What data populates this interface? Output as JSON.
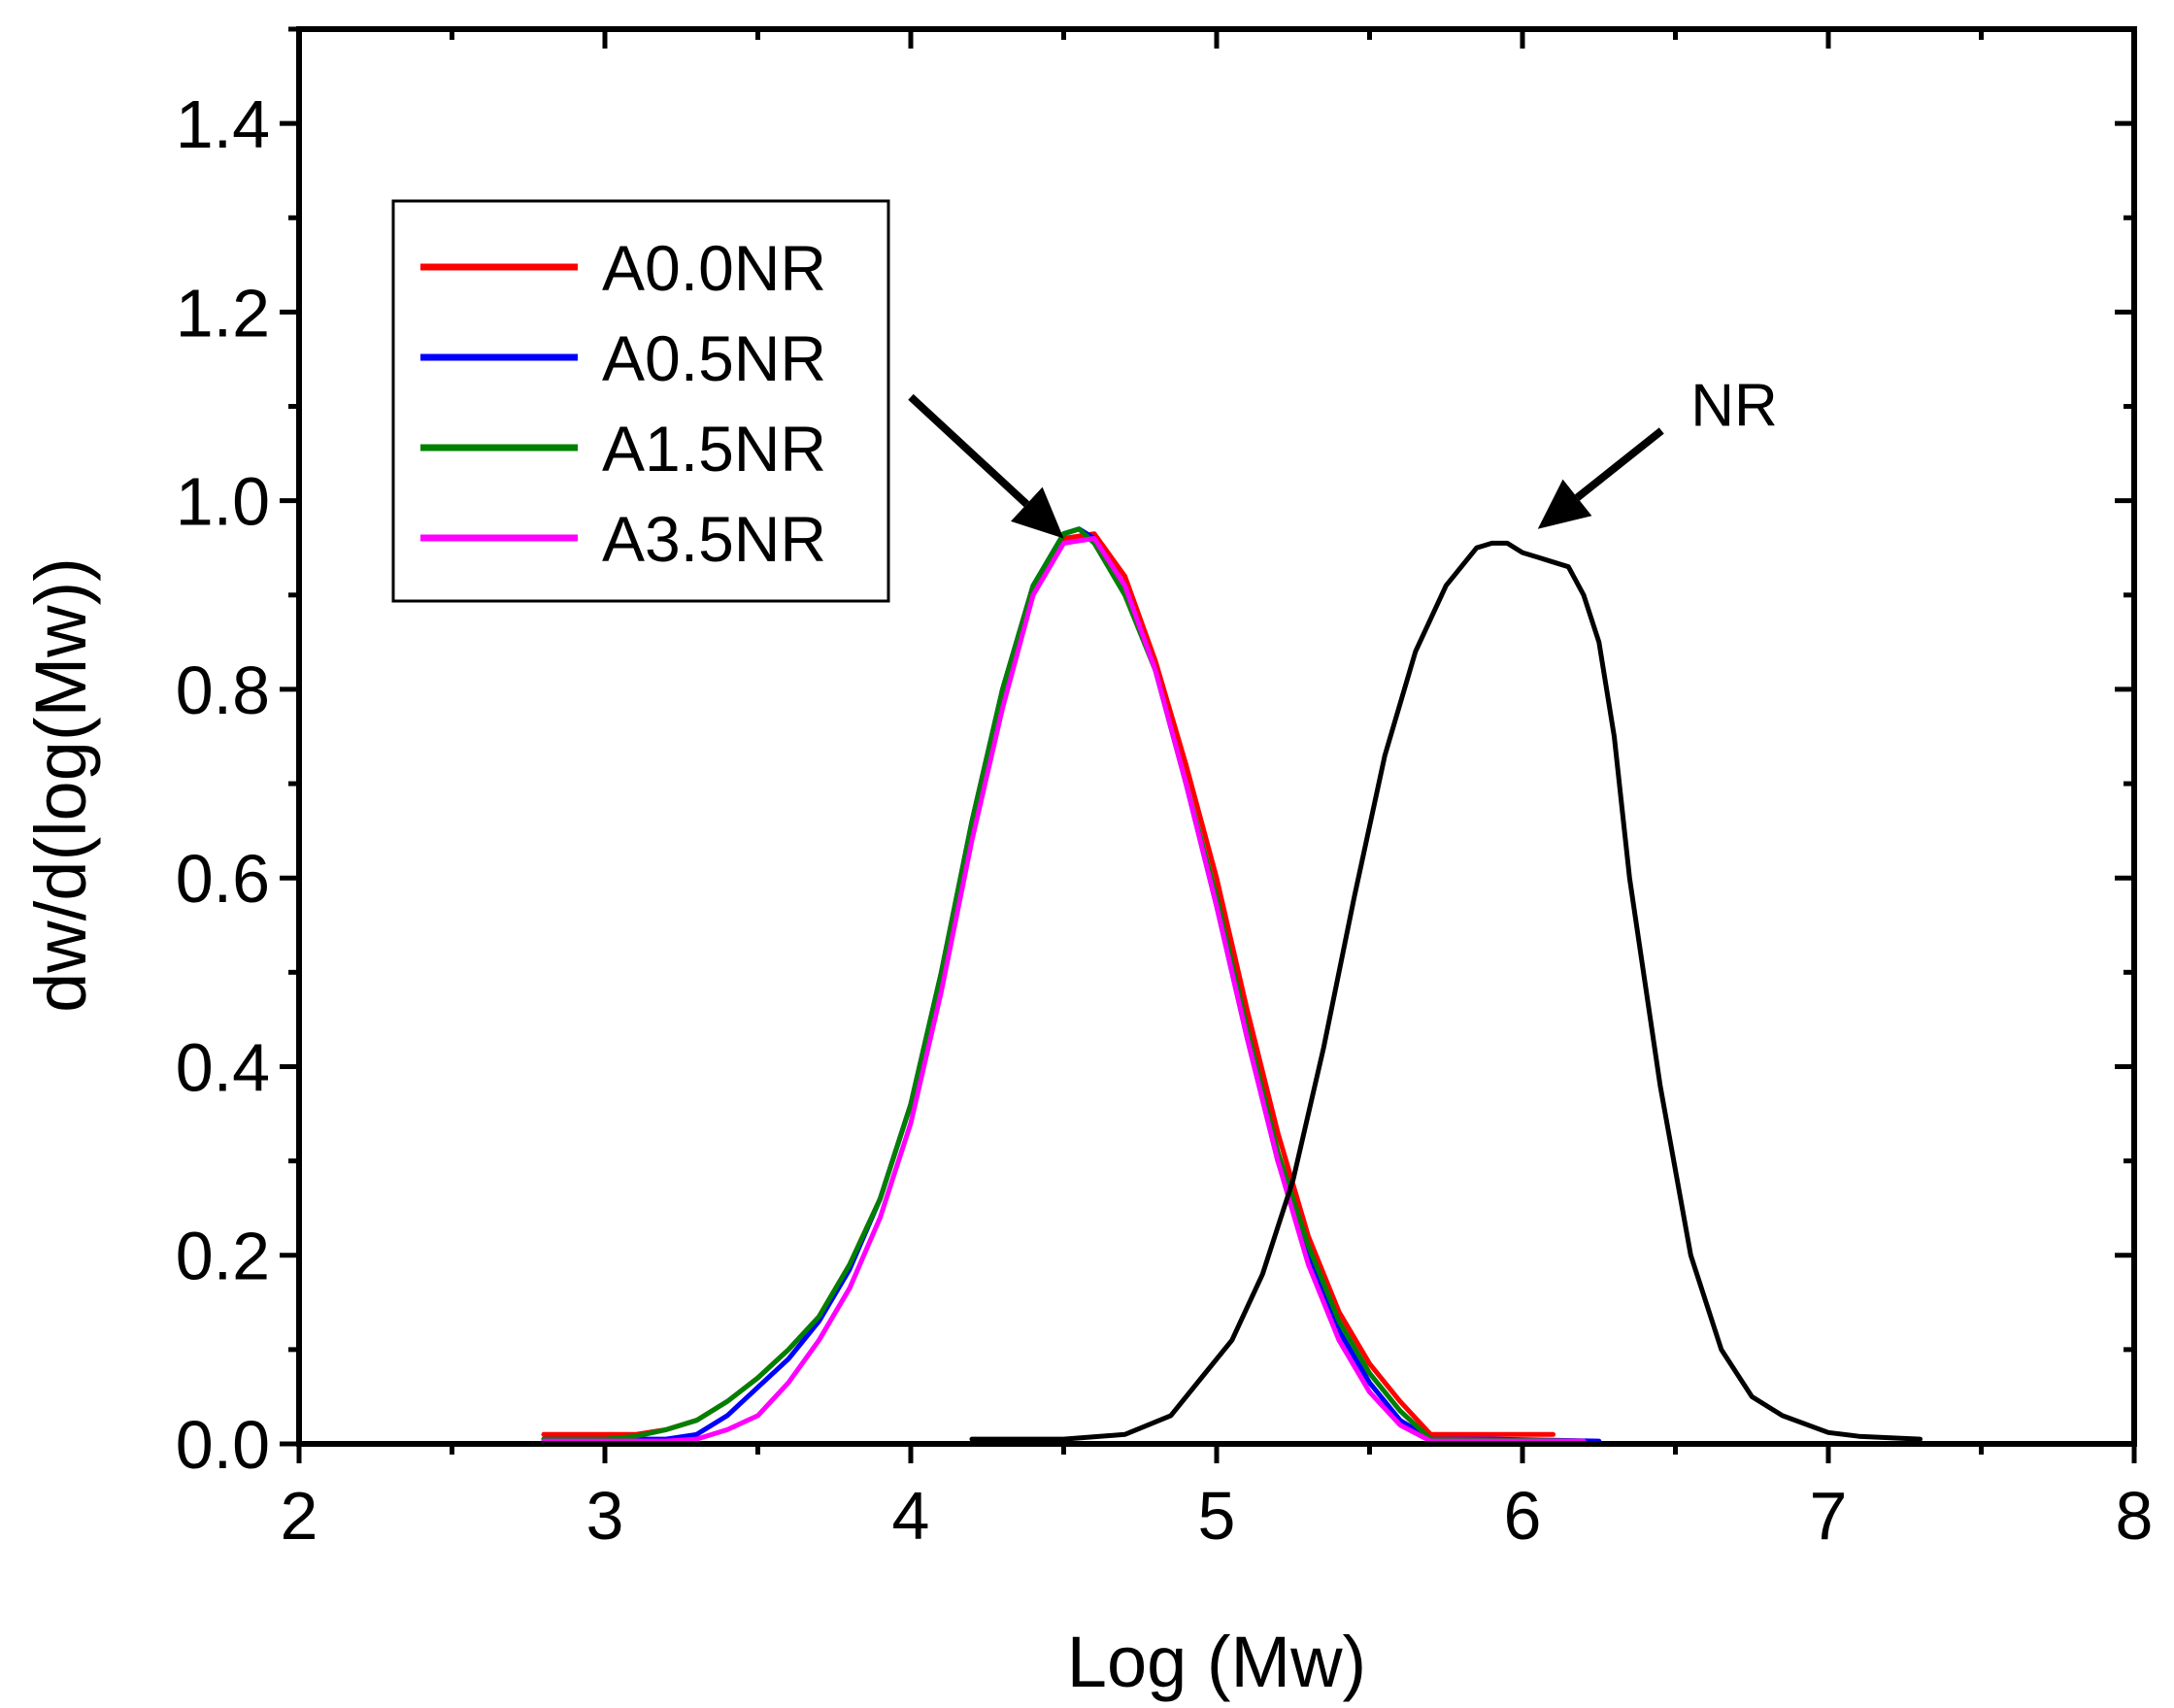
{
  "chart_data": {
    "type": "line",
    "title": "",
    "xlabel": "Log (Mw)",
    "ylabel": "dw/d(log(Mw))",
    "xlim": [
      2,
      8
    ],
    "ylim": [
      0,
      1.5
    ],
    "x_ticks": [
      2,
      3,
      4,
      5,
      6,
      7,
      8
    ],
    "x_tick_labels": [
      "2",
      "3",
      "4",
      "5",
      "6",
      "7",
      "8"
    ],
    "y_ticks": [
      0.0,
      0.2,
      0.4,
      0.6,
      0.8,
      1.0,
      1.2,
      1.4
    ],
    "y_tick_labels": [
      "0.0",
      "0.2",
      "0.4",
      "0.6",
      "0.8",
      "1.0",
      "1.2",
      "1.4"
    ],
    "grid": false,
    "legend_position": "top-left",
    "series": [
      {
        "name": "A0.0NR",
        "color": "#ff0000",
        "in_legend": true,
        "x": [
          2.8,
          3.0,
          3.1,
          3.2,
          3.3,
          3.4,
          3.5,
          3.6,
          3.7,
          3.8,
          3.9,
          4.0,
          4.1,
          4.2,
          4.3,
          4.4,
          4.5,
          4.6,
          4.7,
          4.8,
          4.9,
          5.0,
          5.1,
          5.2,
          5.3,
          5.4,
          5.5,
          5.6,
          5.7,
          5.8,
          6.1
        ],
        "y": [
          0.01,
          0.01,
          0.01,
          0.015,
          0.025,
          0.045,
          0.07,
          0.1,
          0.135,
          0.19,
          0.26,
          0.36,
          0.5,
          0.66,
          0.8,
          0.91,
          0.96,
          0.965,
          0.92,
          0.83,
          0.72,
          0.6,
          0.46,
          0.33,
          0.22,
          0.14,
          0.085,
          0.045,
          0.01,
          0.01,
          0.01
        ]
      },
      {
        "name": "A0.5NR",
        "color": "#0000ff",
        "in_legend": true,
        "x": [
          2.8,
          3.0,
          3.2,
          3.3,
          3.4,
          3.5,
          3.6,
          3.7,
          3.8,
          3.9,
          4.0,
          4.1,
          4.2,
          4.3,
          4.4,
          4.5,
          4.55,
          4.6,
          4.7,
          4.8,
          4.9,
          5.0,
          5.1,
          5.2,
          5.3,
          5.4,
          5.5,
          5.6,
          5.7,
          5.9,
          6.25
        ],
        "y": [
          0.005,
          0.005,
          0.005,
          0.01,
          0.03,
          0.06,
          0.09,
          0.13,
          0.185,
          0.26,
          0.36,
          0.5,
          0.66,
          0.8,
          0.91,
          0.965,
          0.97,
          0.96,
          0.91,
          0.82,
          0.7,
          0.57,
          0.43,
          0.3,
          0.2,
          0.12,
          0.065,
          0.025,
          0.005,
          0.005,
          0.003
        ]
      },
      {
        "name": "A1.5NR",
        "color": "#008000",
        "in_legend": true,
        "x": [
          2.8,
          3.0,
          3.1,
          3.2,
          3.3,
          3.4,
          3.5,
          3.6,
          3.7,
          3.8,
          3.9,
          4.0,
          4.1,
          4.2,
          4.3,
          4.4,
          4.5,
          4.55,
          4.6,
          4.7,
          4.8,
          4.9,
          5.0,
          5.1,
          5.2,
          5.3,
          5.4,
          5.5,
          5.6,
          5.7,
          6.2
        ],
        "y": [
          0.005,
          0.005,
          0.008,
          0.015,
          0.025,
          0.045,
          0.07,
          0.1,
          0.135,
          0.19,
          0.26,
          0.36,
          0.5,
          0.66,
          0.8,
          0.91,
          0.965,
          0.97,
          0.955,
          0.9,
          0.82,
          0.7,
          0.58,
          0.44,
          0.31,
          0.21,
          0.13,
          0.075,
          0.035,
          0.005,
          0.003
        ]
      },
      {
        "name": "A3.5NR",
        "color": "#ff00ff",
        "in_legend": true,
        "x": [
          2.8,
          3.0,
          3.2,
          3.3,
          3.4,
          3.5,
          3.6,
          3.7,
          3.8,
          3.9,
          4.0,
          4.1,
          4.2,
          4.3,
          4.4,
          4.5,
          4.6,
          4.7,
          4.8,
          4.9,
          5.0,
          5.1,
          5.2,
          5.3,
          5.4,
          5.5,
          5.6,
          5.7,
          5.9,
          6.2
        ],
        "y": [
          0.003,
          0.003,
          0.003,
          0.005,
          0.015,
          0.03,
          0.065,
          0.11,
          0.165,
          0.24,
          0.34,
          0.48,
          0.64,
          0.78,
          0.9,
          0.955,
          0.96,
          0.91,
          0.82,
          0.7,
          0.57,
          0.43,
          0.3,
          0.19,
          0.11,
          0.055,
          0.02,
          0.003,
          0.003,
          0.003
        ]
      },
      {
        "name": "NR",
        "color": "#000000",
        "in_legend": false,
        "x": [
          4.2,
          4.5,
          4.7,
          4.85,
          4.95,
          5.05,
          5.15,
          5.25,
          5.35,
          5.45,
          5.55,
          5.65,
          5.75,
          5.85,
          5.9,
          5.95,
          6.0,
          6.05,
          6.1,
          6.15,
          6.2,
          6.25,
          6.3,
          6.35,
          6.45,
          6.55,
          6.65,
          6.75,
          6.85,
          7.0,
          7.1,
          7.3
        ],
        "y": [
          0.005,
          0.005,
          0.01,
          0.03,
          0.07,
          0.11,
          0.18,
          0.28,
          0.42,
          0.58,
          0.73,
          0.84,
          0.91,
          0.95,
          0.955,
          0.955,
          0.945,
          0.94,
          0.935,
          0.93,
          0.9,
          0.85,
          0.75,
          0.6,
          0.38,
          0.2,
          0.1,
          0.05,
          0.03,
          0.012,
          0.008,
          0.005
        ]
      }
    ],
    "annotations": [
      {
        "text": "NR",
        "type": "arrow",
        "points_to_x": 6.05,
        "points_to_y": 0.97,
        "text_x": 6.55,
        "text_y": 1.1
      },
      {
        "text": "",
        "type": "arrow",
        "points_to_x": 4.5,
        "points_to_y": 0.96,
        "tail_x": 4.0,
        "tail_y": 1.11
      }
    ]
  }
}
